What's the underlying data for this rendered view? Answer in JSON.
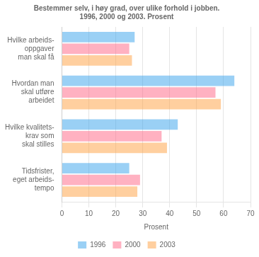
{
  "chart_data": {
    "type": "bar",
    "orientation": "horizontal",
    "title": "Bestemmer selv, i høy grad, over ulike forhold i jobben.\n1996, 2000 og 2003. Prosent",
    "categories": [
      "Hvilke arbeids-\noppgaver\nman skal få",
      "Hvordan man\nskal utføre\narbeidet",
      "Hvilke kvalitets-\nkrav som\nskal stilles",
      "Tidsfrister,\neget arbeids-\ntempo"
    ],
    "series": [
      {
        "name": "1996",
        "values": [
          27,
          64,
          43,
          25
        ]
      },
      {
        "name": "2000",
        "values": [
          25,
          57,
          37,
          29
        ]
      },
      {
        "name": "2003",
        "values": [
          26,
          59,
          39,
          28
        ]
      }
    ],
    "xlabel": "Prosent",
    "xlim": [
      0,
      70
    ],
    "xticks": [
      0,
      10,
      20,
      30,
      40,
      50,
      60,
      70
    ],
    "grid": true,
    "legend": "bottom"
  }
}
